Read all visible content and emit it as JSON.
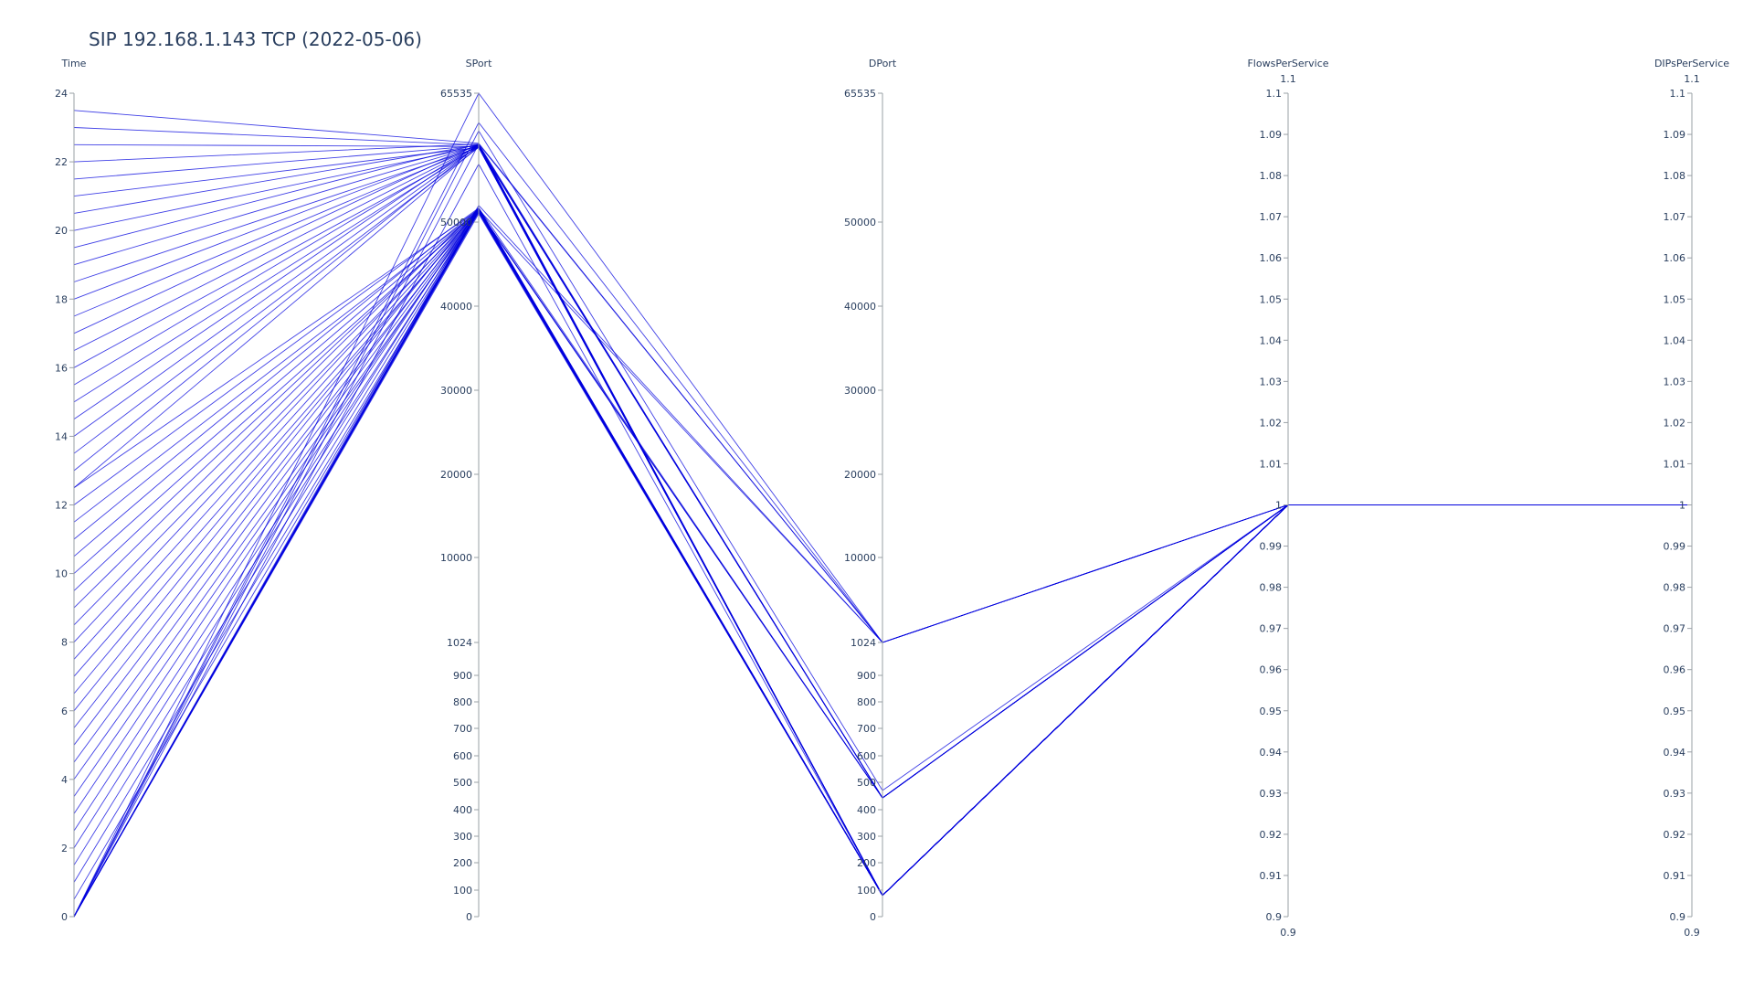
{
  "chart_data": {
    "type": "parallel_coordinates",
    "title": "SIP 192.168.1.143 TCP (2022-05-06)",
    "line_color": "#0000dd",
    "axes": [
      {
        "name": "Time",
        "range": [
          0,
          24
        ],
        "ticks": [
          "0",
          "2",
          "4",
          "6",
          "8",
          "10",
          "12",
          "14",
          "16",
          "18",
          "20",
          "22",
          "24"
        ],
        "tick_values": [
          0,
          2,
          4,
          6,
          8,
          10,
          12,
          14,
          16,
          18,
          20,
          22,
          24
        ],
        "range_labels": []
      },
      {
        "name": "SPort",
        "scale": "piecewise",
        "range": [
          0,
          65535
        ],
        "ticks": [
          "0",
          "100",
          "200",
          "300",
          "400",
          "500",
          "600",
          "700",
          "800",
          "900",
          "1024",
          "10000",
          "20000",
          "30000",
          "40000",
          "50000",
          "65535"
        ],
        "tick_values": [
          0,
          100,
          200,
          300,
          400,
          500,
          600,
          700,
          800,
          900,
          1024,
          10000,
          20000,
          30000,
          40000,
          50000,
          65535
        ],
        "range_labels": []
      },
      {
        "name": "DPort",
        "scale": "piecewise",
        "range": [
          0,
          65535
        ],
        "ticks": [
          "0",
          "100",
          "200",
          "300",
          "400",
          "500",
          "600",
          "700",
          "800",
          "900",
          "1024",
          "10000",
          "20000",
          "30000",
          "40000",
          "50000",
          "65535"
        ],
        "tick_values": [
          0,
          100,
          200,
          300,
          400,
          500,
          600,
          700,
          800,
          900,
          1024,
          10000,
          20000,
          30000,
          40000,
          50000,
          65535
        ],
        "range_labels": []
      },
      {
        "name": "FlowsPerService",
        "range": [
          0.9,
          1.1
        ],
        "ticks": [
          "0.9",
          "0.91",
          "0.92",
          "0.93",
          "0.94",
          "0.95",
          "0.96",
          "0.97",
          "0.98",
          "0.99",
          "1",
          "1.01",
          "1.02",
          "1.03",
          "1.04",
          "1.05",
          "1.06",
          "1.07",
          "1.08",
          "1.09",
          "1.1"
        ],
        "tick_values": [
          0.9,
          0.91,
          0.92,
          0.93,
          0.94,
          0.95,
          0.96,
          0.97,
          0.98,
          0.99,
          1,
          1.01,
          1.02,
          1.03,
          1.04,
          1.05,
          1.06,
          1.07,
          1.08,
          1.09,
          1.1
        ],
        "range_labels": [
          "1.1",
          "0.9"
        ]
      },
      {
        "name": "DIPsPerService",
        "range": [
          0.9,
          1.1
        ],
        "ticks": [
          "0.9",
          "0.91",
          "0.92",
          "0.93",
          "0.94",
          "0.95",
          "0.96",
          "0.97",
          "0.98",
          "0.99",
          "1",
          "1.01",
          "1.02",
          "1.03",
          "1.04",
          "1.05",
          "1.06",
          "1.07",
          "1.08",
          "1.09",
          "1.1"
        ],
        "tick_values": [
          0.9,
          0.91,
          0.92,
          0.93,
          0.94,
          0.95,
          0.96,
          0.97,
          0.98,
          0.99,
          1,
          1.01,
          1.02,
          1.03,
          1.04,
          1.05,
          1.06,
          1.07,
          1.08,
          1.09,
          1.1
        ],
        "range_labels": [
          "1.1",
          "0.9"
        ]
      }
    ],
    "rows": [
      [
        23.5,
        59500,
        1024,
        1,
        1
      ],
      [
        23.0,
        59300,
        443,
        1,
        1
      ],
      [
        22.5,
        59100,
        80,
        1,
        1
      ],
      [
        22.0,
        59400,
        443,
        1,
        1
      ],
      [
        21.5,
        59200,
        80,
        1,
        1
      ],
      [
        21.0,
        59000,
        80,
        1,
        1
      ],
      [
        20.5,
        59300,
        80,
        1,
        1
      ],
      [
        20.0,
        59100,
        443,
        1,
        1
      ],
      [
        19.5,
        59400,
        80,
        1,
        1
      ],
      [
        19.0,
        59200,
        80,
        1,
        1
      ],
      [
        18.5,
        59000,
        80,
        1,
        1
      ],
      [
        18.0,
        59300,
        443,
        1,
        1
      ],
      [
        17.5,
        59100,
        80,
        1,
        1
      ],
      [
        17.0,
        59400,
        80,
        1,
        1
      ],
      [
        16.5,
        59200,
        80,
        1,
        1
      ],
      [
        16.0,
        59000,
        80,
        1,
        1
      ],
      [
        15.5,
        59300,
        80,
        1,
        1
      ],
      [
        15.0,
        59100,
        443,
        1,
        1
      ],
      [
        14.5,
        59400,
        80,
        1,
        1
      ],
      [
        14.0,
        59200,
        80,
        1,
        1
      ],
      [
        13.5,
        59000,
        80,
        1,
        1
      ],
      [
        13.0,
        59300,
        80,
        1,
        1
      ],
      [
        12.5,
        59100,
        443,
        1,
        1
      ],
      [
        12.5,
        51500,
        80,
        1,
        1
      ],
      [
        12.0,
        51700,
        80,
        1,
        1
      ],
      [
        11.5,
        51300,
        80,
        1,
        1
      ],
      [
        11.0,
        51600,
        80,
        1,
        1
      ],
      [
        10.5,
        51400,
        80,
        1,
        1
      ],
      [
        10.0,
        51200,
        80,
        1,
        1
      ],
      [
        9.5,
        51500,
        80,
        1,
        1
      ],
      [
        9.0,
        51700,
        443,
        1,
        1
      ],
      [
        8.5,
        51300,
        80,
        1,
        1
      ],
      [
        8.0,
        51600,
        80,
        1,
        1
      ],
      [
        7.5,
        51400,
        80,
        1,
        1
      ],
      [
        7.0,
        51200,
        80,
        1,
        1
      ],
      [
        6.5,
        51500,
        80,
        1,
        1
      ],
      [
        6.0,
        51700,
        80,
        1,
        1
      ],
      [
        5.5,
        51300,
        80,
        1,
        1
      ],
      [
        5.0,
        51600,
        80,
        1,
        1
      ],
      [
        4.5,
        51400,
        443,
        1,
        1
      ],
      [
        4.0,
        51200,
        80,
        1,
        1
      ],
      [
        3.5,
        51500,
        80,
        1,
        1
      ],
      [
        3.0,
        51700,
        80,
        1,
        1
      ],
      [
        2.5,
        51300,
        80,
        1,
        1
      ],
      [
        2.0,
        51600,
        80,
        1,
        1
      ],
      [
        1.5,
        51400,
        80,
        1,
        1
      ],
      [
        1.0,
        51200,
        80,
        1,
        1
      ],
      [
        0.5,
        51500,
        80,
        1,
        1
      ],
      [
        0.0,
        51700,
        80,
        1,
        1
      ],
      [
        0.0,
        51300,
        80,
        1,
        1
      ],
      [
        0.0,
        51600,
        80,
        1,
        1
      ],
      [
        0.0,
        51400,
        443,
        1,
        1
      ],
      [
        0.0,
        51200,
        80,
        1,
        1
      ],
      [
        0.0,
        51500,
        80,
        1,
        1
      ],
      [
        0.0,
        51000,
        80,
        1,
        1
      ],
      [
        0.0,
        51300,
        443,
        1,
        1
      ],
      [
        0.0,
        65535,
        1024,
        1,
        1
      ],
      [
        0.0,
        59400,
        1024,
        1,
        1
      ],
      [
        0.0,
        62000,
        1024,
        1,
        1
      ],
      [
        0.0,
        57000,
        80,
        1,
        1
      ],
      [
        0.0,
        52000,
        1024,
        1,
        1
      ],
      [
        0.0,
        61000,
        470,
        1,
        1
      ],
      [
        0.0,
        51500,
        1024,
        1,
        1
      ]
    ]
  }
}
